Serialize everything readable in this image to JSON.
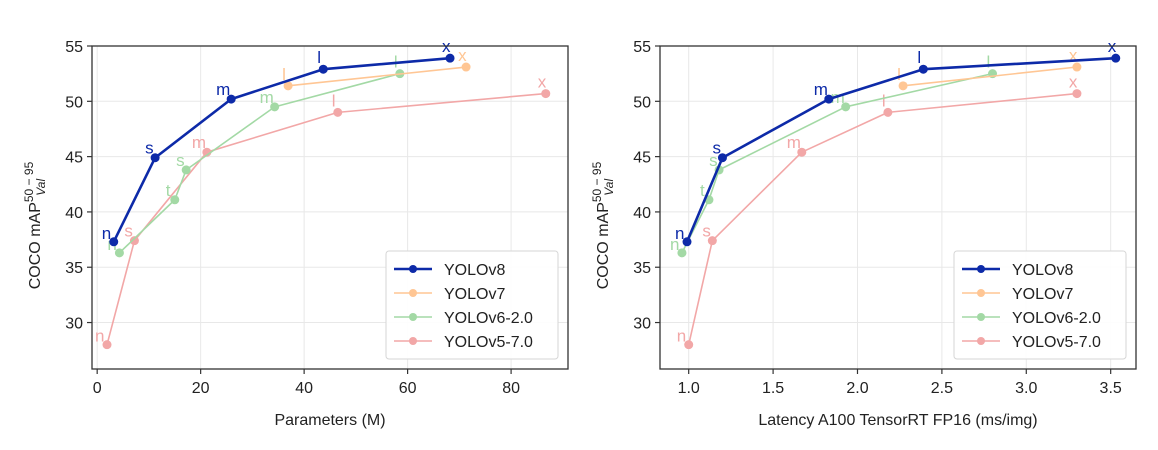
{
  "chart_data": [
    {
      "type": "line",
      "title": "",
      "xlabel": "Parameters (M)",
      "ylabel": "COCO mAP",
      "ylabel_sup": "50 − 95",
      "ylabel_sub": "Val",
      "xlim": [
        -1,
        91
      ],
      "ylim": [
        25.8,
        55
      ],
      "xticks": [
        0,
        20,
        40,
        60,
        80
      ],
      "xtick_labels": [
        "0",
        "20",
        "40",
        "60",
        "80"
      ],
      "yticks": [
        30,
        35,
        40,
        45,
        50,
        55
      ],
      "ytick_labels": [
        "30",
        "35",
        "40",
        "45",
        "50",
        "55"
      ],
      "grid": true,
      "legend_position": "lower-right",
      "series": [
        {
          "name": "YOLOv8",
          "color": "#0d2aa8",
          "points": [
            {
              "label": "n",
              "x": 3.2,
              "y": 37.3
            },
            {
              "label": "s",
              "x": 11.2,
              "y": 44.9
            },
            {
              "label": "m",
              "x": 25.9,
              "y": 50.2
            },
            {
              "label": "l",
              "x": 43.7,
              "y": 52.9
            },
            {
              "label": "x",
              "x": 68.2,
              "y": 53.9
            }
          ]
        },
        {
          "name": "YOLOv7",
          "color": "#ffc694",
          "points": [
            {
              "label": "l",
              "x": 36.9,
              "y": 51.4
            },
            {
              "label": "x",
              "x": 71.3,
              "y": 53.1
            }
          ]
        },
        {
          "name": "YOLOv6-2.0",
          "color": "#a3d9a5",
          "points": [
            {
              "label": "n",
              "x": 4.3,
              "y": 36.3
            },
            {
              "label": "t",
              "x": 15.0,
              "y": 41.1
            },
            {
              "label": "s",
              "x": 17.2,
              "y": 43.8
            },
            {
              "label": "m",
              "x": 34.3,
              "y": 49.5
            },
            {
              "label": "l",
              "x": 58.5,
              "y": 52.5
            }
          ]
        },
        {
          "name": "YOLOv5-7.0",
          "color": "#f2a7a7",
          "points": [
            {
              "label": "n",
              "x": 1.9,
              "y": 28.0
            },
            {
              "label": "s",
              "x": 7.2,
              "y": 37.4
            },
            {
              "label": "m",
              "x": 21.2,
              "y": 45.4
            },
            {
              "label": "l",
              "x": 46.5,
              "y": 49.0
            },
            {
              "label": "x",
              "x": 86.7,
              "y": 50.7
            }
          ]
        }
      ]
    },
    {
      "type": "line",
      "title": "",
      "xlabel": "Latency A100 TensorRT FP16 (ms/img)",
      "ylabel": "COCO mAP",
      "ylabel_sup": "50 − 95",
      "ylabel_sub": "Val",
      "xlim": [
        0.83,
        3.65
      ],
      "ylim": [
        25.8,
        55
      ],
      "xticks": [
        1.0,
        1.5,
        2.0,
        2.5,
        3.0,
        3.5
      ],
      "xtick_labels": [
        "1.0",
        "1.5",
        "2.0",
        "2.5",
        "3.0",
        "3.5"
      ],
      "yticks": [
        30,
        35,
        40,
        45,
        50,
        55
      ],
      "ytick_labels": [
        "30",
        "35",
        "40",
        "45",
        "50",
        "55"
      ],
      "grid": true,
      "legend_position": "lower-right",
      "series": [
        {
          "name": "YOLOv8",
          "color": "#0d2aa8",
          "points": [
            {
              "label": "n",
              "x": 0.99,
              "y": 37.3
            },
            {
              "label": "s",
              "x": 1.2,
              "y": 44.9
            },
            {
              "label": "m",
              "x": 1.83,
              "y": 50.2
            },
            {
              "label": "l",
              "x": 2.39,
              "y": 52.9
            },
            {
              "label": "x",
              "x": 3.53,
              "y": 53.9
            }
          ]
        },
        {
          "name": "YOLOv7",
          "color": "#ffc694",
          "points": [
            {
              "label": "l",
              "x": 2.27,
              "y": 51.4
            },
            {
              "label": "x",
              "x": 3.3,
              "y": 53.1
            }
          ]
        },
        {
          "name": "YOLOv6-2.0",
          "color": "#a3d9a5",
          "points": [
            {
              "label": "n",
              "x": 0.96,
              "y": 36.3
            },
            {
              "label": "t",
              "x": 1.12,
              "y": 41.1
            },
            {
              "label": "s",
              "x": 1.18,
              "y": 43.8
            },
            {
              "label": "m",
              "x": 1.93,
              "y": 49.5
            },
            {
              "label": "l",
              "x": 2.8,
              "y": 52.5
            }
          ]
        },
        {
          "name": "YOLOv5-7.0",
          "color": "#f2a7a7",
          "points": [
            {
              "label": "n",
              "x": 1.0,
              "y": 28.0
            },
            {
              "label": "s",
              "x": 1.14,
              "y": 37.4
            },
            {
              "label": "m",
              "x": 1.67,
              "y": 45.4
            },
            {
              "label": "l",
              "x": 2.18,
              "y": 49.0
            },
            {
              "label": "x",
              "x": 3.3,
              "y": 50.7
            }
          ]
        }
      ]
    }
  ]
}
